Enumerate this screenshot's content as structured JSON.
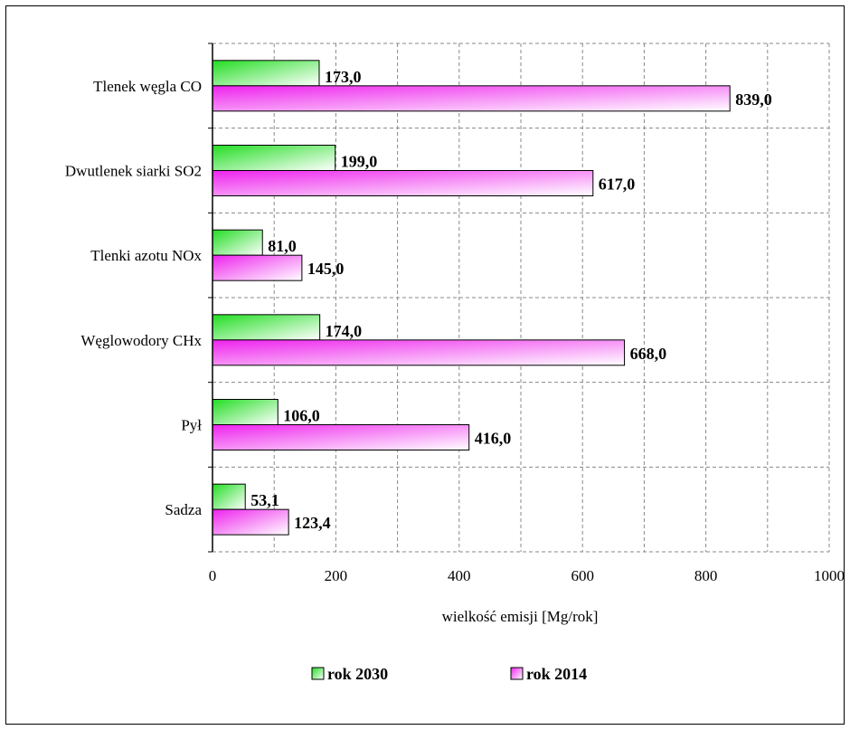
{
  "chart_data": {
    "type": "bar",
    "orientation": "horizontal",
    "categories": [
      "Tlenek węgla CO",
      "Dwutlenek siarki SO2",
      "Tlenki azotu NOx",
      "Węglowodory CHx",
      "Pył",
      "Sadza"
    ],
    "series": [
      {
        "name": "rok 2030",
        "values": [
          173.0,
          199.0,
          81.0,
          174.0,
          106.0,
          53.1
        ],
        "labels": [
          "173,0",
          "199,0",
          "81,0",
          "174,0",
          "106,0",
          "53,1"
        ],
        "color": "#22dd22"
      },
      {
        "name": "rok 2014",
        "values": [
          839.0,
          617.0,
          145.0,
          668.0,
          416.0,
          123.4
        ],
        "labels": [
          "839,0",
          "617,0",
          "145,0",
          "668,0",
          "416,0",
          "123,4"
        ],
        "color": "#ee22ee"
      }
    ],
    "xlabel": "wielkość emisji   [Mg/rok]",
    "xlim": [
      0,
      1000
    ],
    "xticks": [
      0,
      200,
      400,
      600,
      800,
      1000
    ],
    "xtick_labels": [
      "0",
      "200",
      "400",
      "600",
      "800",
      "1000"
    ],
    "grid": true,
    "legend_position": "bottom"
  }
}
